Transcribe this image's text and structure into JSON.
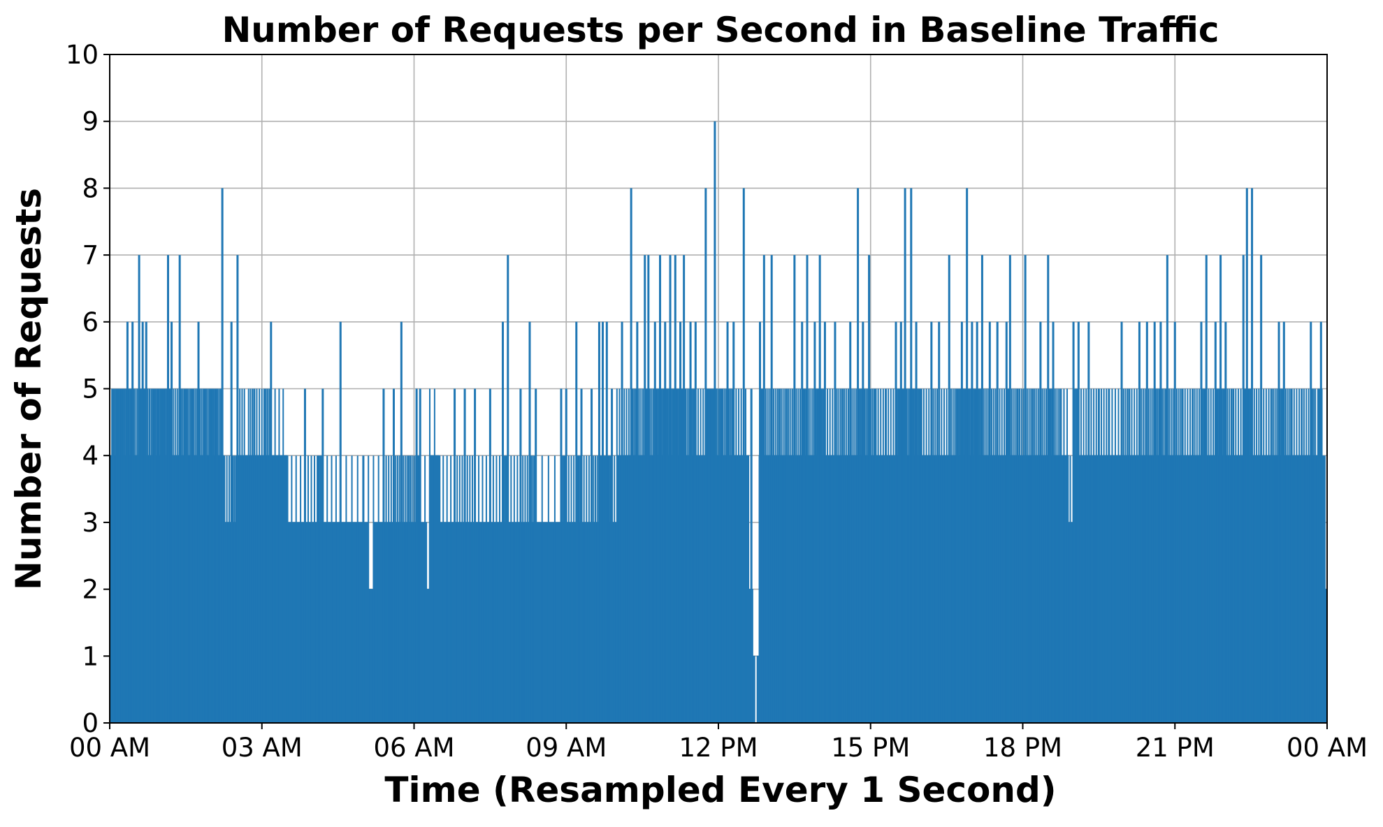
{
  "chart_data": {
    "type": "area",
    "title": "Number of Requests per Second in Baseline Traffic",
    "xlabel": "Time (Resampled Every 1 Second)",
    "ylabel": "Number of Requests",
    "x_unit": "hours since 00 AM",
    "xlim": [
      0,
      24
    ],
    "ylim": [
      0,
      10
    ],
    "x_ticks": [
      {
        "value": 0,
        "label": "00 AM"
      },
      {
        "value": 3,
        "label": "03 AM"
      },
      {
        "value": 6,
        "label": "06 AM"
      },
      {
        "value": 9,
        "label": "09 AM"
      },
      {
        "value": 12,
        "label": "12 PM"
      },
      {
        "value": 15,
        "label": "15 PM"
      },
      {
        "value": 18,
        "label": "18 PM"
      },
      {
        "value": 21,
        "label": "21 PM"
      },
      {
        "value": 24,
        "label": "00 AM"
      }
    ],
    "y_ticks": [
      {
        "value": 0,
        "label": "0"
      },
      {
        "value": 1,
        "label": "1"
      },
      {
        "value": 2,
        "label": "2"
      },
      {
        "value": 3,
        "label": "3"
      },
      {
        "value": 4,
        "label": "4"
      },
      {
        "value": 5,
        "label": "5"
      },
      {
        "value": 6,
        "label": "6"
      },
      {
        "value": 7,
        "label": "7"
      },
      {
        "value": 8,
        "label": "8"
      },
      {
        "value": 9,
        "label": "9"
      },
      {
        "value": 10,
        "label": "10"
      }
    ],
    "grid": true,
    "series_color": "#1f77b4",
    "envelope": [
      [
        0.0,
        4
      ],
      [
        0.5,
        4
      ],
      [
        1.0,
        4
      ],
      [
        1.5,
        4
      ],
      [
        2.0,
        4
      ],
      [
        2.25,
        3
      ],
      [
        2.5,
        4
      ],
      [
        3.0,
        4
      ],
      [
        3.5,
        3
      ],
      [
        4.0,
        3
      ],
      [
        4.5,
        3
      ],
      [
        5.0,
        3
      ],
      [
        5.1,
        2
      ],
      [
        5.2,
        3
      ],
      [
        5.5,
        3
      ],
      [
        6.0,
        3
      ],
      [
        6.25,
        2
      ],
      [
        6.3,
        4
      ],
      [
        6.5,
        3
      ],
      [
        7.0,
        3
      ],
      [
        7.5,
        3
      ],
      [
        8.0,
        3
      ],
      [
        8.5,
        3
      ],
      [
        9.0,
        3
      ],
      [
        9.5,
        3
      ],
      [
        10.0,
        4
      ],
      [
        10.5,
        4
      ],
      [
        11.0,
        4
      ],
      [
        11.5,
        4
      ],
      [
        12.0,
        4
      ],
      [
        12.3,
        4
      ],
      [
        12.6,
        2
      ],
      [
        12.68,
        1
      ],
      [
        12.72,
        0
      ],
      [
        12.76,
        1
      ],
      [
        12.8,
        4
      ],
      [
        13.0,
        4
      ],
      [
        14.0,
        4
      ],
      [
        15.0,
        4
      ],
      [
        16.0,
        4
      ],
      [
        17.0,
        4
      ],
      [
        18.0,
        4
      ],
      [
        18.5,
        4
      ],
      [
        18.9,
        3
      ],
      [
        19.0,
        4
      ],
      [
        19.5,
        4
      ],
      [
        20.0,
        4
      ],
      [
        20.5,
        4
      ],
      [
        21.0,
        4
      ],
      [
        21.5,
        4
      ],
      [
        22.0,
        4
      ],
      [
        22.5,
        4
      ],
      [
        23.0,
        4
      ],
      [
        23.5,
        4
      ],
      [
        23.9,
        2
      ],
      [
        24.0,
        3
      ]
    ],
    "peaks": [
      [
        0.05,
        5
      ],
      [
        0.15,
        5
      ],
      [
        0.25,
        5
      ],
      [
        0.35,
        6
      ],
      [
        0.45,
        6
      ],
      [
        0.58,
        7
      ],
      [
        0.65,
        6
      ],
      [
        0.72,
        6
      ],
      [
        0.85,
        5
      ],
      [
        0.95,
        5
      ],
      [
        1.05,
        5
      ],
      [
        1.15,
        7
      ],
      [
        1.22,
        6
      ],
      [
        1.38,
        7
      ],
      [
        1.5,
        5
      ],
      [
        1.62,
        5
      ],
      [
        1.75,
        6
      ],
      [
        1.88,
        5
      ],
      [
        2.0,
        5
      ],
      [
        2.1,
        5
      ],
      [
        2.22,
        8
      ],
      [
        2.4,
        6
      ],
      [
        2.52,
        7
      ],
      [
        2.7,
        4
      ],
      [
        2.85,
        5
      ],
      [
        3.05,
        5
      ],
      [
        3.18,
        6
      ],
      [
        3.5,
        4
      ],
      [
        3.85,
        5
      ],
      [
        4.1,
        4
      ],
      [
        4.2,
        5
      ],
      [
        4.55,
        6
      ],
      [
        5.0,
        4
      ],
      [
        5.4,
        5
      ],
      [
        5.6,
        5
      ],
      [
        5.75,
        6
      ],
      [
        5.9,
        4
      ],
      [
        6.05,
        5
      ],
      [
        6.12,
        5
      ],
      [
        6.5,
        4
      ],
      [
        6.8,
        5
      ],
      [
        7.0,
        5
      ],
      [
        7.2,
        5
      ],
      [
        7.5,
        5
      ],
      [
        7.75,
        6
      ],
      [
        7.85,
        7
      ],
      [
        8.1,
        5
      ],
      [
        8.28,
        6
      ],
      [
        8.4,
        5
      ],
      [
        8.9,
        5
      ],
      [
        9.0,
        5
      ],
      [
        9.2,
        6
      ],
      [
        9.3,
        5
      ],
      [
        9.5,
        5
      ],
      [
        9.65,
        6
      ],
      [
        9.72,
        6
      ],
      [
        9.8,
        6
      ],
      [
        9.9,
        5
      ],
      [
        10.1,
        6
      ],
      [
        10.28,
        8
      ],
      [
        10.4,
        6
      ],
      [
        10.55,
        7
      ],
      [
        10.62,
        7
      ],
      [
        10.75,
        6
      ],
      [
        10.85,
        7
      ],
      [
        10.95,
        6
      ],
      [
        11.05,
        7
      ],
      [
        11.15,
        7
      ],
      [
        11.25,
        6
      ],
      [
        11.32,
        7
      ],
      [
        11.45,
        6
      ],
      [
        11.55,
        6
      ],
      [
        11.75,
        8
      ],
      [
        11.85,
        5
      ],
      [
        11.93,
        9
      ],
      [
        12.05,
        5
      ],
      [
        12.18,
        6
      ],
      [
        12.3,
        6
      ],
      [
        12.5,
        8
      ],
      [
        12.65,
        5
      ],
      [
        12.82,
        6
      ],
      [
        12.9,
        7
      ],
      [
        13.05,
        7
      ],
      [
        13.2,
        5
      ],
      [
        13.35,
        5
      ],
      [
        13.5,
        7
      ],
      [
        13.65,
        6
      ],
      [
        13.75,
        7
      ],
      [
        13.9,
        6
      ],
      [
        14.0,
        7
      ],
      [
        14.1,
        6
      ],
      [
        14.3,
        6
      ],
      [
        14.45,
        5
      ],
      [
        14.6,
        6
      ],
      [
        14.75,
        8
      ],
      [
        14.85,
        6
      ],
      [
        14.97,
        7
      ],
      [
        15.1,
        5
      ],
      [
        15.3,
        5
      ],
      [
        15.5,
        6
      ],
      [
        15.6,
        6
      ],
      [
        15.68,
        8
      ],
      [
        15.8,
        8
      ],
      [
        15.9,
        6
      ],
      [
        16.0,
        5
      ],
      [
        16.2,
        6
      ],
      [
        16.35,
        6
      ],
      [
        16.55,
        7
      ],
      [
        16.7,
        5
      ],
      [
        16.8,
        6
      ],
      [
        16.9,
        8
      ],
      [
        17.0,
        6
      ],
      [
        17.1,
        6
      ],
      [
        17.2,
        7
      ],
      [
        17.35,
        6
      ],
      [
        17.5,
        6
      ],
      [
        17.68,
        6
      ],
      [
        17.75,
        7
      ],
      [
        17.9,
        5
      ],
      [
        18.05,
        7
      ],
      [
        18.2,
        5
      ],
      [
        18.35,
        6
      ],
      [
        18.5,
        7
      ],
      [
        18.6,
        6
      ],
      [
        18.75,
        5
      ],
      [
        19.0,
        6
      ],
      [
        19.1,
        6
      ],
      [
        19.3,
        6
      ],
      [
        19.5,
        5
      ],
      [
        19.7,
        5
      ],
      [
        19.95,
        6
      ],
      [
        20.1,
        5
      ],
      [
        20.3,
        6
      ],
      [
        20.45,
        6
      ],
      [
        20.6,
        6
      ],
      [
        20.72,
        6
      ],
      [
        20.85,
        7
      ],
      [
        21.0,
        6
      ],
      [
        21.15,
        5
      ],
      [
        21.35,
        5
      ],
      [
        21.52,
        6
      ],
      [
        21.62,
        7
      ],
      [
        21.8,
        6
      ],
      [
        21.9,
        7
      ],
      [
        22.0,
        6
      ],
      [
        22.15,
        5
      ],
      [
        22.35,
        7
      ],
      [
        22.42,
        8
      ],
      [
        22.52,
        8
      ],
      [
        22.7,
        7
      ],
      [
        22.9,
        5
      ],
      [
        23.05,
        6
      ],
      [
        23.15,
        6
      ],
      [
        23.3,
        5
      ],
      [
        23.5,
        5
      ],
      [
        23.68,
        6
      ],
      [
        23.8,
        4
      ],
      [
        23.88,
        6
      ],
      [
        23.95,
        4
      ]
    ]
  }
}
